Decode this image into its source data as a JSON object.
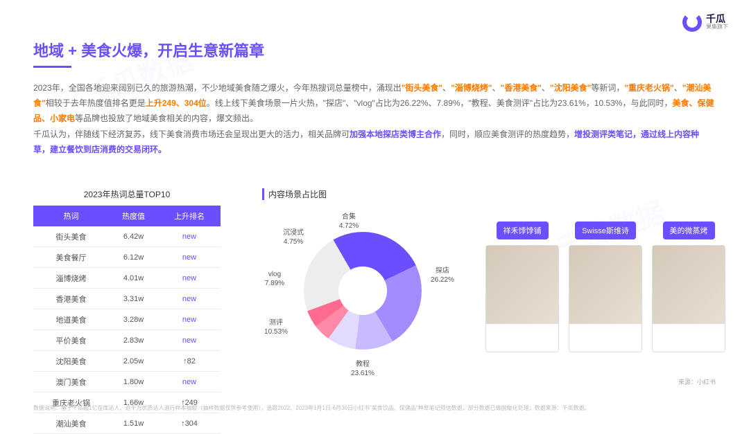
{
  "brand": {
    "title": "千瓜",
    "subtitle": "果集旗下"
  },
  "title": {
    "text": "地域 + 美食火爆，开启生意新篇章",
    "color": "#6b4eff",
    "underline_color": "#6b4eff"
  },
  "paragraph": {
    "line1_pre": "2023年，全国各地迎来阔别已久的旅游热潮，不少地域美食随之爆火，今年热搜词总量榜中，涌现出",
    "kw1": "\"街头美食\"",
    "sep1": "、",
    "kw2": "\"淄博烧烤\"",
    "sep2": "、",
    "kw3": "\"香港美食\"",
    "sep3": "、",
    "kw4": "\"沈阳美食\"",
    "line1_post": "等新词，",
    "kw5": "\"重庆老火锅\"",
    "sep4": "、",
    "kw6": "\"潮汕美食\"",
    "line2_mid": "相较于去年热度值排名更是",
    "kw7": "上升249、304位",
    "line2_post": "。线上线下美食场景一片火热，\"探店\"、\"vlog\"占比为26.22%、7.89%，\"教程、美食测评\"占比为23.61%，10.53%，与此同时，",
    "kw8": "美食、保健品、小家电",
    "line2_end": "等品牌也投放了地域美食相关的内容，爆文频出。",
    "line3_pre": "千瓜认为，伴随线下经济复苏，线下美食消费市场还会呈现出更大的活力，相关品牌可",
    "kw9": "加强本地探店类博主合作",
    "line3_mid": "，同时，顺应美食测评的热度趋势，",
    "kw10": "增投测评类笔记，通过线上内容种草，建立餐饮到店消费的交易闭环。"
  },
  "table": {
    "caption": "2023年热词总量TOP10",
    "columns": [
      "热词",
      "热度值",
      "上升排名"
    ],
    "header_bg": "#6b4eff",
    "rank_purple_color": "#6b4eff",
    "rows": [
      {
        "word": "街头美食",
        "value": "6.42w",
        "rank": "new",
        "is_new": true
      },
      {
        "word": "美食餐厅",
        "value": "6.12w",
        "rank": "new",
        "is_new": true
      },
      {
        "word": "淄博烧烤",
        "value": "4.01w",
        "rank": "new",
        "is_new": true
      },
      {
        "word": "香港美食",
        "value": "3.31w",
        "rank": "new",
        "is_new": true
      },
      {
        "word": "地道美食",
        "value": "3.28w",
        "rank": "new",
        "is_new": true
      },
      {
        "word": "平价美食",
        "value": "2.83w",
        "rank": "new",
        "is_new": true
      },
      {
        "word": "沈阳美食",
        "value": "2.05w",
        "rank": "↑82",
        "is_new": false
      },
      {
        "word": "澳门美食",
        "value": "1.80w",
        "rank": "new",
        "is_new": true
      },
      {
        "word": "重庆老火锅",
        "value": "1.66w",
        "rank": "↑249",
        "is_new": false
      },
      {
        "word": "潮汕美食",
        "value": "1.51w",
        "rank": "↑304",
        "is_new": false
      }
    ]
  },
  "donut": {
    "caption": "内容场景占比图",
    "type": "donut",
    "background_color": "#ffffff",
    "hole_ratio": 0.41,
    "segments": [
      {
        "label": "探店",
        "value": 26.22,
        "value_str": "26.22%",
        "color": "#6b4eff"
      },
      {
        "label": "教程",
        "value": 23.61,
        "value_str": "23.61%",
        "color": "#a48cff"
      },
      {
        "label": "测评",
        "value": 10.53,
        "value_str": "10.53%",
        "color": "#c9b9ff"
      },
      {
        "label": "vlog",
        "value": 7.89,
        "value_str": "7.89%",
        "color": "#e2daff"
      },
      {
        "label": "沉浸式",
        "value": 4.75,
        "value_str": "4.75%",
        "color": "#ff8aa8"
      },
      {
        "label": "合集",
        "value": 4.72,
        "value_str": "4.72%",
        "color": "#ff6a8e"
      },
      {
        "label": "其他",
        "value": 22.28,
        "value_str": "",
        "color": "#ededed"
      }
    ],
    "label_fontsize": 10,
    "label_color": "#555555"
  },
  "cards": {
    "items": [
      {
        "tag": "祥禾饽饽铺"
      },
      {
        "tag": "Swisse斯维诗"
      },
      {
        "tag": "美的微蒸烤"
      }
    ],
    "tag_bg": "#6b4eff",
    "tag_color": "#ffffff"
  },
  "source_note": "来源：小红书",
  "footer": "数据说明：基于千瓜超1亿在库达人、近千万优质达人进行样本抽取（抽样数据仅供参考使用），选取2022、2023年1月1日-6月30日小红书\"美食饮品、保健品\"种草笔记预估数据，部分数据已做脱敏化处理；数据来源：千瓜数据。"
}
